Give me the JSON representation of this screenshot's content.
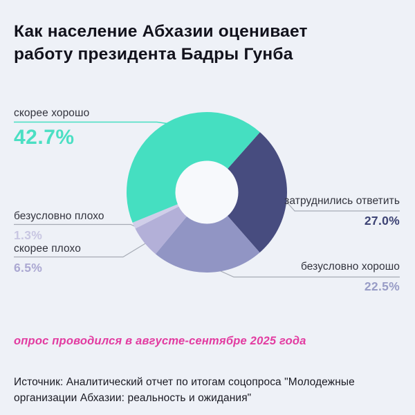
{
  "page": {
    "background_color": "#EEF1F7",
    "title": "Как население Абхазии оценивает работу президента Бадры Гунба",
    "title_color": "#12121C"
  },
  "chart_data": {
    "type": "pie",
    "subtype": "donut",
    "unit": "%",
    "start_angle_deg": 41.5,
    "hole_color": "#F7F9FC",
    "leader_line_color": "#A6ABB5",
    "label_color": "#32333D",
    "segments": [
      {
        "id": "zatrudnilis",
        "label": "затруднились ответить",
        "value": 27.0,
        "display": "27.0%",
        "color": "#474C7F",
        "value_color": "#3D4374"
      },
      {
        "id": "bezuslovno-horosho",
        "label": "безусловно хорошо",
        "value": 22.5,
        "display": "22.5%",
        "color": "#9195C4",
        "value_color": "#989CC6"
      },
      {
        "id": "skoree-ploho",
        "label": "скорее плохо",
        "value": 6.5,
        "display": "6.5%",
        "color": "#B3B0D8",
        "value_color": "#ABA8D2"
      },
      {
        "id": "bezuslovno-ploho",
        "label": "безусловно плохо",
        "value": 1.3,
        "display": "1.3%",
        "color": "#D0CEE9",
        "value_color": "#C8C6E2"
      },
      {
        "id": "skoree-horosho",
        "label": "скорее хорошо",
        "value": 42.7,
        "display": "42.7%",
        "color": "#45DFC1",
        "value_color": "#4BDFC3"
      }
    ]
  },
  "survey_note": {
    "text": "опрос проводился в августе-сентябре 2025 года",
    "color": "#E23BA0"
  },
  "source": {
    "text": "Источник: Аналитический отчет по итогам соцопроса \"Молодежные организации Абхазии: реальность и ожидания\""
  }
}
